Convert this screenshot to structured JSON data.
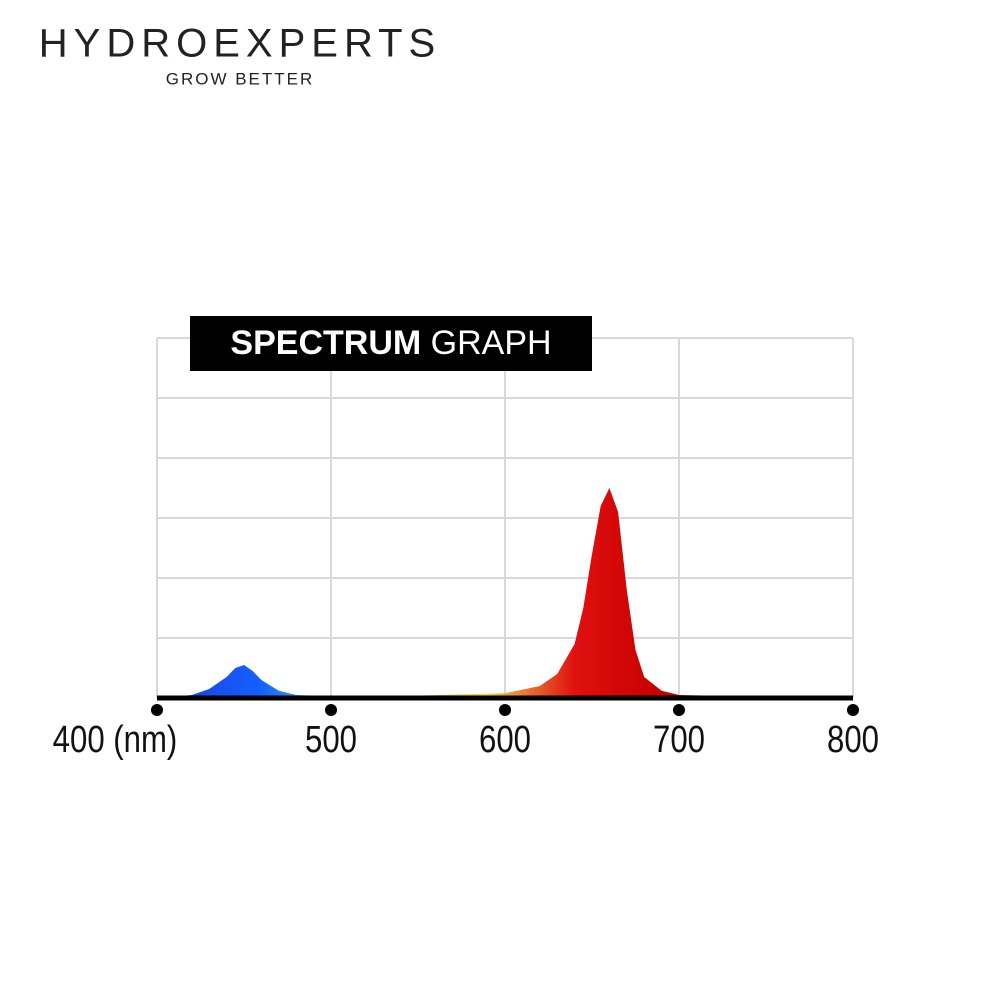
{
  "brand": {
    "name": "HYDROEXPERTS",
    "tagline": "GROW BETTER"
  },
  "chart_data": {
    "type": "area",
    "title": [
      "SPECTRUM",
      "GRAPH"
    ],
    "x": [
      400,
      420,
      430,
      440,
      445,
      450,
      455,
      460,
      470,
      480,
      500,
      550,
      600,
      620,
      630,
      640,
      645,
      650,
      655,
      660,
      665,
      670,
      675,
      680,
      690,
      700,
      750,
      800
    ],
    "values": [
      0,
      0.05,
      0.15,
      0.35,
      0.5,
      0.55,
      0.45,
      0.3,
      0.12,
      0.05,
      0.03,
      0.04,
      0.08,
      0.2,
      0.4,
      0.9,
      1.5,
      2.4,
      3.2,
      3.5,
      3.1,
      1.8,
      0.8,
      0.35,
      0.12,
      0.05,
      0.02,
      0.03
    ],
    "xlim": [
      400,
      800
    ],
    "xticks": [
      {
        "value": 400,
        "label": "400 (nm)"
      },
      500,
      600,
      700,
      800
    ],
    "ylim": [
      0,
      6
    ],
    "yticks": [
      0,
      1,
      2,
      3,
      4,
      5,
      6
    ],
    "grid": true
  }
}
